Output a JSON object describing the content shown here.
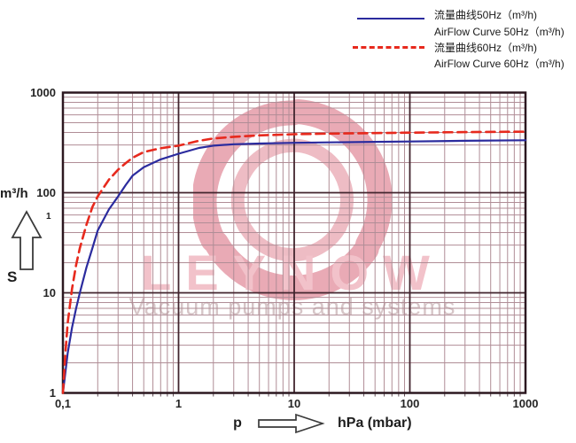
{
  "legend": {
    "items": [
      {
        "label_cn": "流量曲线50Hz（m³/h)",
        "label_en": "AirFlow Curve 50Hz（m³/h)",
        "line_style": "solid",
        "color": "#2b2b9e"
      },
      {
        "label_cn": "流量曲线60Hz（m³/h)",
        "label_en": "AirFlow Curve 60Hz（m³/h)",
        "line_style": "dashed",
        "color": "#e7291d"
      }
    ]
  },
  "watermark": {
    "brand": "LEYNOW",
    "tagline": "Vacuum pumps and systems",
    "brand_color": "#f2c2ca",
    "tagline_color": "#d6c5c7",
    "logo_outer_color": "#e9aab5",
    "logo_inner_color": "#eebcc4"
  },
  "chart_data": {
    "type": "line",
    "x_scale": "log",
    "y_scale": "log",
    "xlim": [
      0.1,
      1000
    ],
    "ylim": [
      1,
      1000
    ],
    "grid": "log-major-minor",
    "legend_position": "top-right",
    "x_symbol": "p",
    "xlabel": "hPa (mbar)",
    "ylabel": "m³/h",
    "y_symbol": "S",
    "y_footnote_mark": "1",
    "xticklabels": [
      "0,1",
      "1",
      "10",
      "100",
      "1000"
    ],
    "xtickvalues": [
      0.1,
      1,
      10,
      100,
      1000
    ],
    "yticklabels": [
      "1000",
      "100",
      "10",
      "1"
    ],
    "ytickvalues": [
      1000,
      100,
      10,
      1
    ],
    "colors": {
      "border": "#2c1820",
      "grid_major": "#42252e",
      "grid_minor": "#b08d96",
      "axis_minor_tick": "#5f4a52"
    },
    "series": [
      {
        "name": "AirFlow Curve 50Hz",
        "frequency": "50Hz",
        "unit": "m³/h",
        "color": "#2b2b9e",
        "style": "solid",
        "points": [
          [
            0.1,
            1
          ],
          [
            0.11,
            2.5
          ],
          [
            0.12,
            4.5
          ],
          [
            0.13,
            7
          ],
          [
            0.14,
            10
          ],
          [
            0.16,
            18
          ],
          [
            0.18,
            28
          ],
          [
            0.2,
            42
          ],
          [
            0.25,
            68
          ],
          [
            0.3,
            92
          ],
          [
            0.35,
            120
          ],
          [
            0.4,
            148
          ],
          [
            0.5,
            180
          ],
          [
            0.7,
            215
          ],
          [
            1,
            245
          ],
          [
            1.5,
            280
          ],
          [
            2,
            295
          ],
          [
            3,
            305
          ],
          [
            5,
            310
          ],
          [
            10,
            315
          ],
          [
            20,
            318
          ],
          [
            50,
            322
          ],
          [
            100,
            325
          ],
          [
            300,
            330
          ],
          [
            1000,
            334
          ]
        ]
      },
      {
        "name": "AirFlow Curve 60Hz",
        "frequency": "60Hz",
        "unit": "m³/h",
        "color": "#e7291d",
        "style": "dashed",
        "points": [
          [
            0.1,
            1
          ],
          [
            0.105,
            2.5
          ],
          [
            0.11,
            5
          ],
          [
            0.12,
            11
          ],
          [
            0.13,
            19
          ],
          [
            0.14,
            28
          ],
          [
            0.16,
            48
          ],
          [
            0.18,
            72
          ],
          [
            0.2,
            92
          ],
          [
            0.25,
            135
          ],
          [
            0.3,
            170
          ],
          [
            0.35,
            198
          ],
          [
            0.4,
            223
          ],
          [
            0.5,
            255
          ],
          [
            0.7,
            278
          ],
          [
            1,
            295
          ],
          [
            1.5,
            330
          ],
          [
            2,
            348
          ],
          [
            3,
            362
          ],
          [
            5,
            374
          ],
          [
            10,
            384
          ],
          [
            20,
            389
          ],
          [
            50,
            394
          ],
          [
            100,
            398
          ],
          [
            300,
            403
          ],
          [
            1000,
            407
          ]
        ]
      }
    ]
  }
}
